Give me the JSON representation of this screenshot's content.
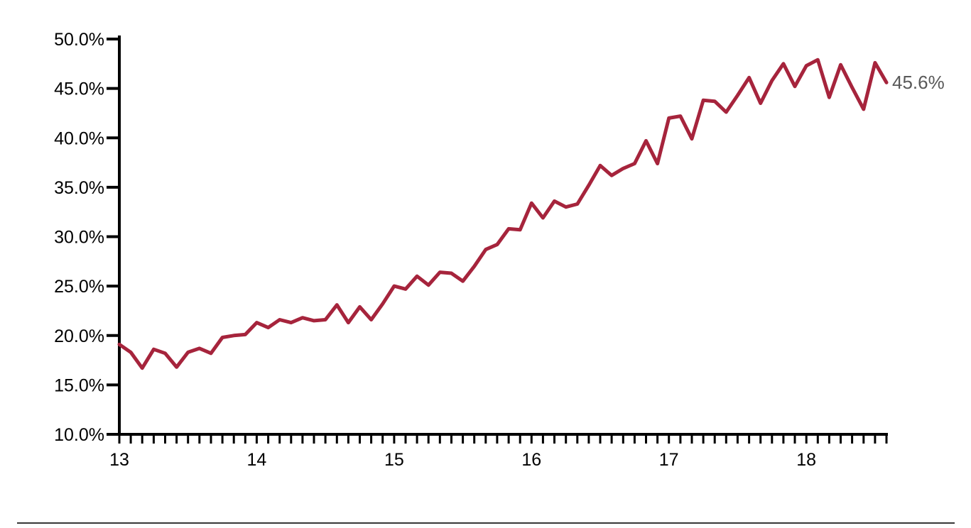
{
  "chart_data": {
    "type": "line",
    "title": "",
    "xlabel": "",
    "ylabel": "",
    "ylim": [
      10,
      50
    ],
    "grid": false,
    "legend": "none",
    "x_unit": "months, monthly ticks from Jan 2013 to Aug 2018",
    "x_year_labels": [
      "13",
      "14",
      "15",
      "16",
      "17",
      "18"
    ],
    "y_tick_labels": [
      "50.0%",
      "45.0%",
      "40.0%",
      "35.0%",
      "30.0%",
      "25.0%",
      "20.0%",
      "15.0%",
      "10.0%"
    ],
    "series_name": "share-percent",
    "values": [
      19.1,
      18.3,
      16.7,
      18.6,
      18.2,
      16.8,
      18.3,
      18.7,
      18.2,
      19.8,
      20.0,
      20.1,
      21.3,
      20.8,
      21.6,
      21.3,
      21.8,
      21.5,
      21.6,
      23.1,
      21.3,
      22.9,
      21.6,
      23.2,
      25.0,
      24.7,
      26.0,
      25.1,
      26.4,
      26.3,
      25.5,
      27.0,
      28.7,
      29.2,
      30.8,
      30.7,
      33.4,
      31.9,
      33.6,
      33.0,
      33.3,
      35.2,
      37.2,
      36.2,
      36.9,
      37.4,
      39.7,
      37.4,
      42.0,
      42.2,
      39.9,
      43.8,
      43.7,
      42.6,
      44.3,
      46.1,
      43.5,
      45.8,
      47.5,
      45.2,
      47.3,
      47.9,
      44.1,
      47.4,
      45.1,
      42.9,
      47.6,
      45.6
    ],
    "end_label": "45.6%",
    "line_color": "#A6243C",
    "axis_color": "#000000",
    "text_color": "#000000",
    "end_label_color": "#595959"
  }
}
